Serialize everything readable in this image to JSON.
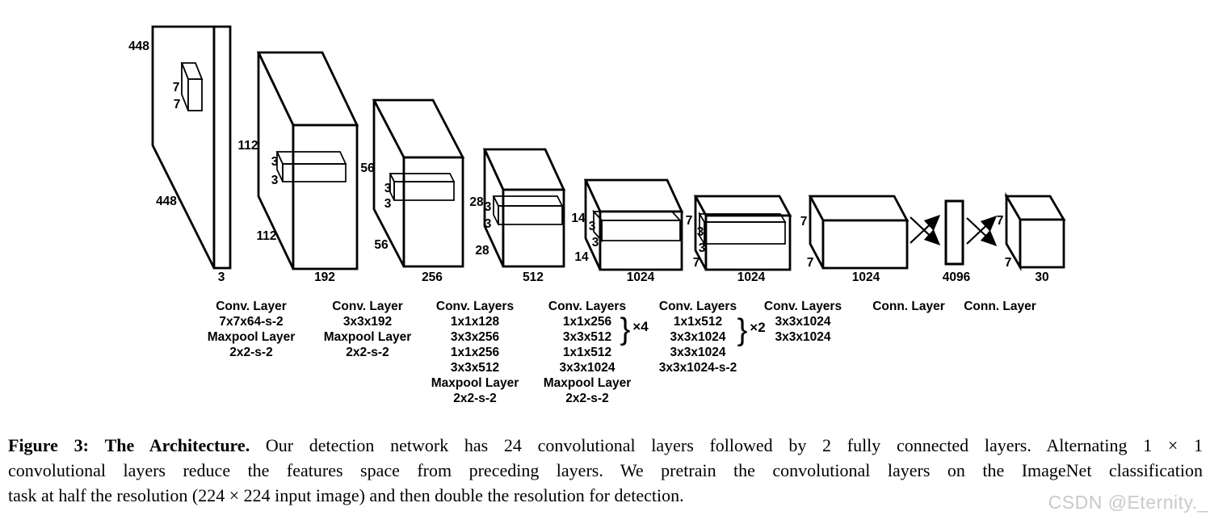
{
  "figure": {
    "input": {
      "height_label": "448",
      "width_label": "448",
      "depth_label": "3",
      "patch_labels": [
        "7",
        "7"
      ]
    },
    "blocks": [
      {
        "id": "conv1",
        "height_label": "112",
        "width_label": "112",
        "depth_label": "192",
        "kernel_labels": [
          "3",
          "3"
        ]
      },
      {
        "id": "conv2",
        "height_label": "56",
        "width_label": "56",
        "depth_label": "256",
        "kernel_labels": [
          "3",
          "3"
        ]
      },
      {
        "id": "conv3",
        "height_label": "28",
        "width_label": "28",
        "depth_label": "512",
        "kernel_labels": [
          "3",
          "3"
        ]
      },
      {
        "id": "conv4",
        "height_label": "14",
        "width_label": "14",
        "depth_label": "1024",
        "kernel_labels": [
          "3",
          "3"
        ]
      },
      {
        "id": "conv5",
        "height_label": "7",
        "width_label": "7",
        "depth_label": "1024",
        "kernel_labels": [
          "3",
          "3"
        ]
      },
      {
        "id": "conv6",
        "height_label": "7",
        "width_label": "7",
        "depth_label": "1024",
        "kernel_labels": []
      },
      {
        "id": "fc1",
        "depth_label": "4096"
      },
      {
        "id": "output",
        "height_label": "7",
        "width_label": "7",
        "depth_label": "30"
      }
    ],
    "layer_columns": [
      {
        "lines": [
          "Conv. Layer",
          "7x7x64-s-2",
          "Maxpool Layer",
          "2x2-s-2"
        ]
      },
      {
        "lines": [
          "Conv. Layer",
          "3x3x192",
          "Maxpool Layer",
          "2x2-s-2"
        ]
      },
      {
        "lines": [
          "Conv. Layers",
          "1x1x128",
          "3x3x256",
          "1x1x256",
          "3x3x512",
          "Maxpool Layer",
          "2x2-s-2"
        ]
      },
      {
        "lines": [
          "Conv. Layers",
          "1x1x256",
          "3x3x512",
          "1x1x512",
          "3x3x1024",
          "Maxpool Layer",
          "2x2-s-2"
        ],
        "multiplier": "×4"
      },
      {
        "lines": [
          "Conv. Layers",
          "1x1x512",
          "3x3x1024",
          "3x3x1024",
          "3x3x1024-s-2"
        ],
        "multiplier": "×2"
      },
      {
        "lines": [
          "Conv. Layers",
          "3x3x1024",
          "3x3x1024"
        ]
      },
      {
        "lines": [
          "Conn. Layer"
        ]
      },
      {
        "lines": [
          "Conn. Layer"
        ]
      }
    ]
  },
  "caption": {
    "figure_label": "Figure 3:",
    "title": "The Architecture.",
    "line1": "Our detection network has 24 convolutional layers followed by 2 fully connected layers. Alternating 1 × 1",
    "line2": "convolutional layers reduce the features space from preceding layers. We pretrain the convolutional layers on the ImageNet classification",
    "line3": "task at half the resolution (224 × 224 input image) and then double the resolution for detection."
  },
  "watermark": {
    "text": "CSDN @Eternity._",
    "color": "#c9c9ce"
  },
  "colors": {
    "background": "#ffffff",
    "line": "#000000",
    "text": "#000000"
  }
}
